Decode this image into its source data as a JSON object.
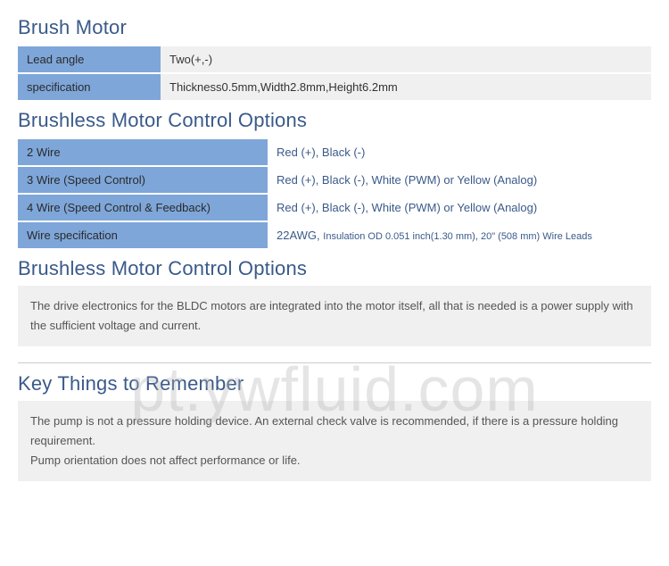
{
  "sections": {
    "brush_motor": {
      "title": "Brush Motor",
      "rows": [
        {
          "label": "Lead angle",
          "value": "Two(+,-)"
        },
        {
          "label": "specification",
          "value": "Thickness0.5mm,Width2.8mm,Height6.2mm"
        }
      ]
    },
    "bldc_options_table": {
      "title": "Brushless Motor Control Options",
      "rows": [
        {
          "label": "2 Wire",
          "value": "Red (+), Black (-)"
        },
        {
          "label": "3 Wire (Speed Control)",
          "value": "Red (+), Black (-), White (PWM) or Yellow (Analog)"
        },
        {
          "label": "4 Wire (Speed Control & Feedback)",
          "value": "Red (+), Black (-), White (PWM) or Yellow (Analog)"
        },
        {
          "label": "Wire specification",
          "value": "22AWG, ",
          "value_tail": "Insulation OD 0.051 inch(1.30 mm), 20\" (508 mm) Wire Leads"
        }
      ]
    },
    "bldc_options_text": {
      "title": "Brushless Motor Control Options",
      "body": "The drive electronics for the BLDC motors are integrated into the motor itself, all that is needed is a power supply with the sufficient voltage and current."
    },
    "key_things": {
      "title": "Key Things to Remember",
      "body1": "The pump is not a pressure holding device. An external check valve is recommended, if there is a pressure holding requirement.",
      "body2": "Pump orientation does not affect performance or life."
    }
  },
  "watermark": "pt.ywfluid.com",
  "colors": {
    "heading": "#3a5a8a",
    "label_bg": "#7ea6d9",
    "value_bg": "#f0f0f0",
    "link_text": "#3a5a8a"
  }
}
